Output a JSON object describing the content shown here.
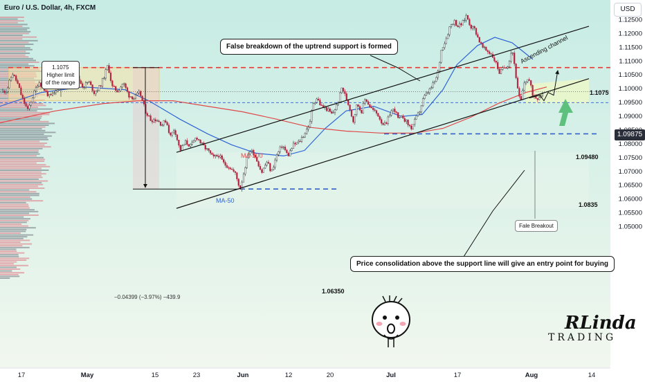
{
  "header": {
    "title": "Euro / U.S. Dollar, 4h, FXCM",
    "currency_button": "USD",
    "current_price": "1.09875"
  },
  "chart_data": {
    "type": "line",
    "instrument": "Euro / U.S. Dollar",
    "timeframe": "4h",
    "source": "FXCM",
    "x_tick_labels": [
      "17",
      "May",
      "15",
      "23",
      "Jun",
      "12",
      "20",
      "Jul",
      "17",
      "Aug",
      "14"
    ],
    "y_tick_labels": [
      "1.12500",
      "1.12000",
      "1.11500",
      "1.11000",
      "1.10500",
      "1.10000",
      "1.09500",
      "1.09000",
      "1.08500",
      "1.08000",
      "1.07500",
      "1.07000",
      "1.06500",
      "1.06000",
      "1.05500",
      "1.05000"
    ],
    "ylim": [
      1.0475,
      1.1295
    ],
    "price_path": [
      [
        0,
        1.0985
      ],
      [
        10,
        1.0995
      ],
      [
        18,
        1.1055
      ],
      [
        25,
        1.102
      ],
      [
        32,
        1.0965
      ],
      [
        40,
        1.092
      ],
      [
        48,
        1.0975
      ],
      [
        56,
        1.1025
      ],
      [
        64,
        1.0995
      ],
      [
        72,
        1.0968
      ],
      [
        80,
        1.0985
      ],
      [
        88,
        1.1025
      ],
      [
        96,
        1.1045
      ],
      [
        104,
        1.1015
      ],
      [
        112,
        1.104
      ],
      [
        120,
        1.1005
      ],
      [
        128,
        1.1025
      ],
      [
        136,
        1.0985
      ],
      [
        144,
        1.1005
      ],
      [
        150,
        1.104
      ],
      [
        156,
        1.1085
      ],
      [
        162,
        1.1005
      ],
      [
        170,
        1.099
      ],
      [
        178,
        1.102
      ],
      [
        186,
        1.0975
      ],
      [
        194,
        1.0965
      ],
      [
        202,
        1.0985
      ],
      [
        210,
        1.0918
      ],
      [
        218,
        1.0885
      ],
      [
        226,
        1.0888
      ],
      [
        234,
        1.0868
      ],
      [
        240,
        1.0885
      ],
      [
        246,
        1.0825
      ],
      [
        252,
        1.0855
      ],
      [
        260,
        1.0775
      ],
      [
        268,
        1.0805
      ],
      [
        276,
        1.079
      ],
      [
        284,
        1.0825
      ],
      [
        292,
        1.0795
      ],
      [
        300,
        1.0775
      ],
      [
        308,
        1.0748
      ],
      [
        316,
        1.0758
      ],
      [
        324,
        1.0725
      ],
      [
        332,
        1.0715
      ],
      [
        340,
        1.069
      ],
      [
        347,
        1.0635
      ],
      [
        354,
        1.0715
      ],
      [
        360,
        1.0775
      ],
      [
        366,
        1.0768
      ],
      [
        372,
        1.0735
      ],
      [
        378,
        1.0695
      ],
      [
        386,
        1.0735
      ],
      [
        392,
        1.0695
      ],
      [
        400,
        1.0758
      ],
      [
        408,
        1.0795
      ],
      [
        416,
        1.0755
      ],
      [
        424,
        1.0795
      ],
      [
        432,
        1.0805
      ],
      [
        440,
        1.0835
      ],
      [
        448,
        1.0875
      ],
      [
        452,
        1.0945
      ],
      [
        458,
        1.0965
      ],
      [
        464,
        1.0935
      ],
      [
        472,
        1.0925
      ],
      [
        480,
        1.0905
      ],
      [
        488,
        1.0945
      ],
      [
        494,
        1.1005
      ],
      [
        500,
        1.0965
      ],
      [
        506,
        1.0925
      ],
      [
        510,
        1.0878
      ],
      [
        516,
        1.0945
      ],
      [
        522,
        1.0915
      ],
      [
        528,
        1.0965
      ],
      [
        534,
        1.0935
      ],
      [
        540,
        1.0918
      ],
      [
        546,
        1.0905
      ],
      [
        552,
        1.0875
      ],
      [
        558,
        1.0865
      ],
      [
        564,
        1.0915
      ],
      [
        570,
        1.0925
      ],
      [
        576,
        1.0885
      ],
      [
        582,
        1.0898
      ],
      [
        588,
        1.0875
      ],
      [
        594,
        1.0855
      ],
      [
        600,
        1.0885
      ],
      [
        606,
        1.0915
      ],
      [
        612,
        1.0965
      ],
      [
        618,
        1.0985
      ],
      [
        624,
        1.1005
      ],
      [
        632,
        1.1045
      ],
      [
        638,
        1.1145
      ],
      [
        644,
        1.1175
      ],
      [
        650,
        1.1225
      ],
      [
        656,
        1.1245
      ],
      [
        662,
        1.1225
      ],
      [
        668,
        1.1235
      ],
      [
        674,
        1.1265
      ],
      [
        680,
        1.1225
      ],
      [
        686,
        1.1215
      ],
      [
        692,
        1.1175
      ],
      [
        698,
        1.1145
      ],
      [
        704,
        1.1135
      ],
      [
        710,
        1.1125
      ],
      [
        716,
        1.1095
      ],
      [
        722,
        1.1055
      ],
      [
        728,
        1.1075
      ],
      [
        734,
        1.1085
      ],
      [
        740,
        1.1145
      ],
      [
        744,
        1.1075
      ],
      [
        748,
        1.0995
      ],
      [
        752,
        1.0945
      ],
      [
        758,
        1.1025
      ],
      [
        764,
        1.1035
      ],
      [
        770,
        1.0975
      ],
      [
        776,
        1.0965
      ],
      [
        782,
        1.0978
      ],
      [
        786,
        1.0985
      ]
    ],
    "series": [
      {
        "name": "MA-50",
        "color": "#2e63d6",
        "points": [
          [
            0,
            1.0935
          ],
          [
            60,
            1.0985
          ],
          [
            120,
            1.1005
          ],
          [
            180,
            1.0995
          ],
          [
            215,
            1.0955
          ],
          [
            260,
            1.0888
          ],
          [
            300,
            1.0835
          ],
          [
            335,
            1.0795
          ],
          [
            370,
            1.0765
          ],
          [
            410,
            1.0755
          ],
          [
            440,
            1.0775
          ],
          [
            470,
            1.0855
          ],
          [
            500,
            1.0918
          ],
          [
            540,
            1.0935
          ],
          [
            580,
            1.0898
          ],
          [
            610,
            1.0905
          ],
          [
            640,
            1.0995
          ],
          [
            660,
            1.1085
          ],
          [
            690,
            1.1155
          ],
          [
            715,
            1.1185
          ],
          [
            740,
            1.1165
          ],
          [
            770,
            1.1105
          ]
        ]
      },
      {
        "name": "MA-200",
        "color": "#e04848",
        "points": [
          [
            0,
            1.0875
          ],
          [
            80,
            1.0918
          ],
          [
            150,
            1.0945
          ],
          [
            200,
            1.0955
          ],
          [
            250,
            1.0955
          ],
          [
            300,
            1.0935
          ],
          [
            350,
            1.0915
          ],
          [
            400,
            1.0888
          ],
          [
            450,
            1.0858
          ],
          [
            500,
            1.0845
          ],
          [
            550,
            1.0838
          ],
          [
            600,
            1.0838
          ],
          [
            640,
            1.0855
          ],
          [
            680,
            1.0895
          ],
          [
            720,
            1.0945
          ],
          [
            760,
            1.0985
          ],
          [
            790,
            1.1005
          ]
        ]
      }
    ],
    "levels": [
      {
        "label": "1.1075",
        "value": 1.1075,
        "style": "dashed",
        "color": "#e53935"
      },
      {
        "label": "1.09480",
        "value": 1.0948,
        "style": "dashed",
        "color": "#3d6fd6"
      },
      {
        "label": "1.0835",
        "value": 1.0835,
        "style": "dashed",
        "color": "#2e5fd6"
      },
      {
        "label": "1.06350",
        "value": 1.0635,
        "style": "dashed",
        "color": "#2e5fd6"
      }
    ],
    "range_box": {
      "y_low": 1.0955,
      "y_high": 1.1075
    },
    "measure": {
      "y_from": 1.1075,
      "y_to": 1.0635,
      "label": "−0.04399 (−3.97%) −439.9"
    },
    "channel": {
      "upper": [
        [
          255,
          1.0768
        ],
        [
          851,
          1.1225
        ]
      ],
      "lower": [
        [
          255,
          1.0565
        ],
        [
          851,
          1.1035
        ]
      ]
    },
    "projection": [
      [
        765,
        1.0965
      ],
      [
        780,
        1.0975
      ],
      [
        786,
        1.0955
      ],
      [
        792,
        1.0985
      ],
      [
        800,
        1.0975
      ],
      [
        806,
        1.1065
      ]
    ]
  },
  "labels": {
    "range_high": "1.1075\nHigher limit\nof the range",
    "ma50": "MA-50",
    "ma200": "MA-200",
    "channel": "Ascending channel",
    "level_1075": "1.1075",
    "level_09480": "1.09480",
    "level_0835": "1.0835",
    "level_06350": "1.06350",
    "measure": "−0.04399 (−3.97%) −439.9",
    "fake_breakout": "Fale Breakout"
  },
  "callouts": {
    "top": "False breakdown of the uptrend support is formed",
    "bottom": "Price consolidation above the support line will give an entry point for buying"
  },
  "logo": {
    "line1": "RLinda",
    "line2": "TRADING"
  },
  "colors": {
    "panel_top": "#c6ece4",
    "panel_bottom": "#f1f7ee",
    "candles": "#b5243f",
    "channel": "#111111",
    "ma50": "#2e63d6",
    "ma200": "#e04848",
    "range_box": "#f0b53a",
    "arrow_green": "#48b96a"
  }
}
